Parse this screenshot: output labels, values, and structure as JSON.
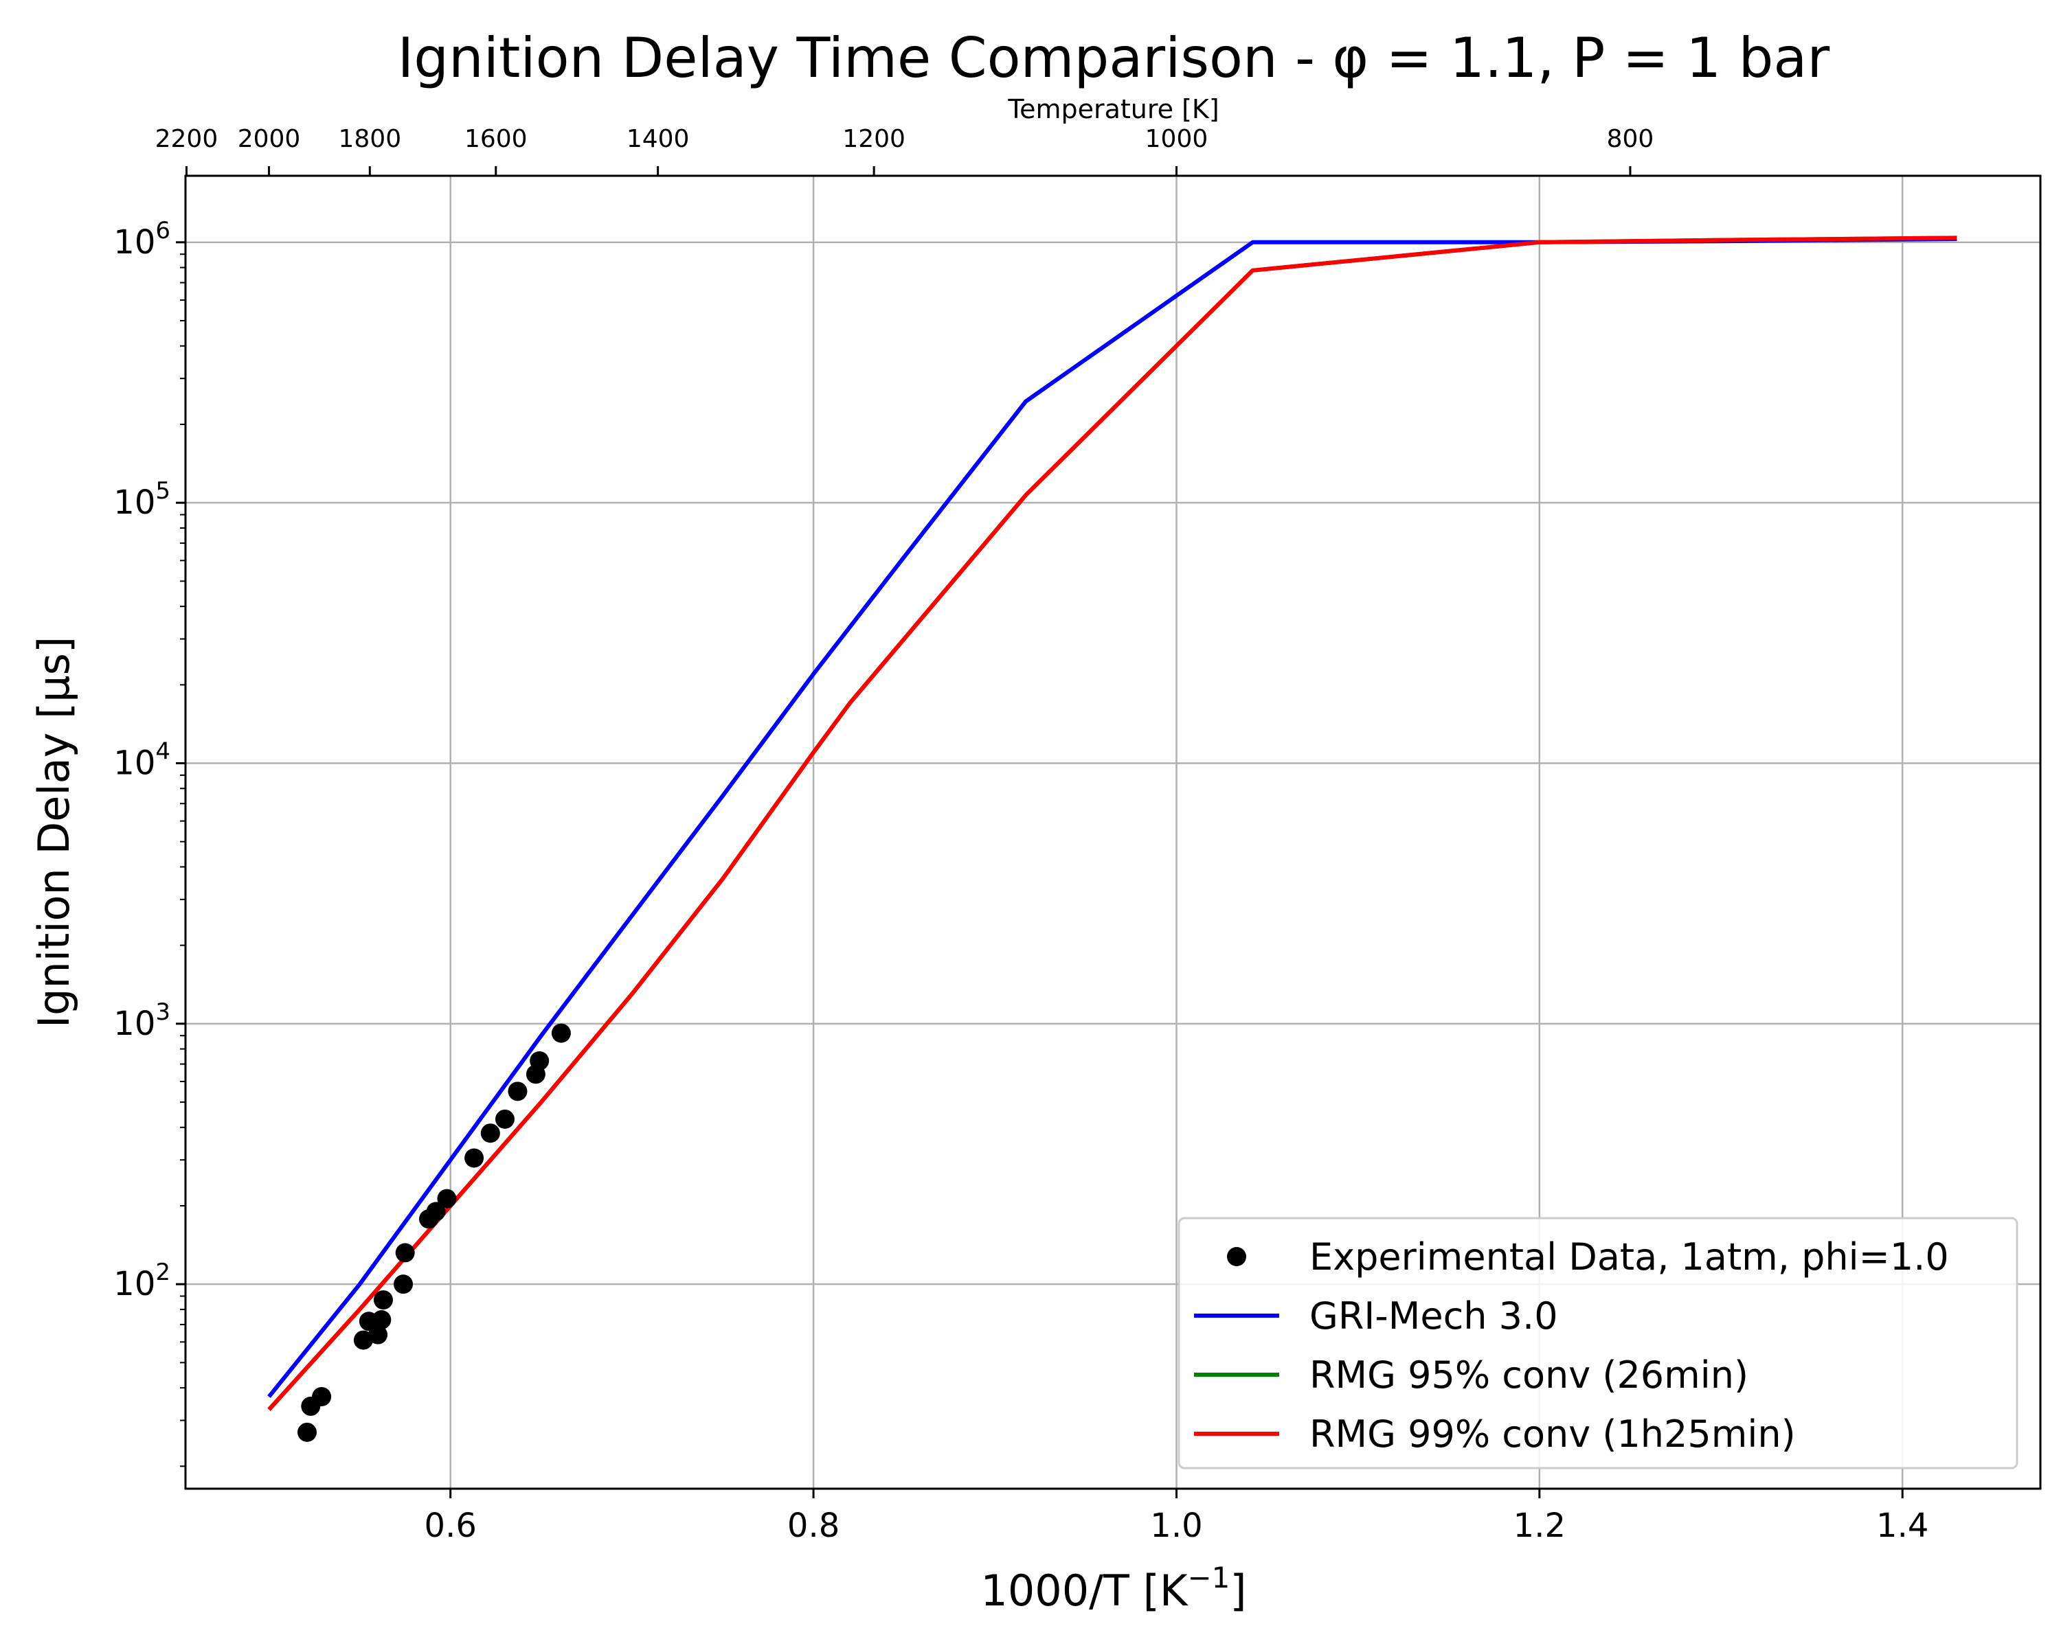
{
  "chart_data": {
    "type": "line",
    "title": "Ignition Delay Time Comparison - φ = 1.1, P = 1 bar",
    "xlabel": "1000/T [K",
    "xlabel_sup": "−1",
    "xlabel_end": "]",
    "ylabel": "Ignition Delay [μs]",
    "top_axis_label": "Temperature [K]",
    "xlim": [
      0.454,
      1.476
    ],
    "ylim": [
      16.4,
      1800000
    ],
    "yscale": "log",
    "grid": true,
    "legend_position": "lower-right",
    "x_ticks": [
      0.6,
      0.8,
      1.0,
      1.2,
      1.4
    ],
    "x_tick_labels": [
      "0.6",
      "0.8",
      "1.0",
      "1.2",
      "1.4"
    ],
    "y_ticks": [
      100,
      1000,
      10000,
      100000,
      1000000
    ],
    "y_tick_base": "10",
    "y_tick_exponents": [
      "2",
      "3",
      "4",
      "5",
      "6"
    ],
    "top_ticks_K": [
      2200,
      2000,
      1800,
      1600,
      1400,
      1200,
      1000,
      800
    ],
    "top_tick_labels": [
      "2200",
      "2000",
      "1800",
      "1600",
      "1400",
      "1200",
      "1000",
      "800"
    ],
    "series": [
      {
        "name": "Experimental Data, 1atm, phi=1.0",
        "kind": "scatter",
        "color": "#000000",
        "x": [
          0.521,
          0.523,
          0.529,
          0.552,
          0.555,
          0.56,
          0.562,
          0.563,
          0.574,
          0.575,
          0.588,
          0.592,
          0.598,
          0.613,
          0.622,
          0.63,
          0.637,
          0.647,
          0.649,
          0.661
        ],
        "y": [
          27,
          34,
          37,
          61,
          72,
          64,
          73,
          87,
          100,
          132,
          178,
          190,
          213,
          305,
          380,
          430,
          550,
          640,
          720,
          920
        ]
      },
      {
        "name": "GRI-Mech 3.0",
        "kind": "line",
        "color": "#0000ff",
        "x": [
          0.5,
          0.55,
          0.6,
          0.65,
          0.7,
          0.75,
          0.8,
          0.85,
          0.917,
          1.042,
          1.1,
          1.2,
          1.3,
          1.43
        ],
        "y": [
          37,
          100,
          300,
          900,
          2600,
          7500,
          22000,
          62000,
          245000,
          1000000,
          1000000,
          1000000,
          1010000,
          1030000
        ]
      },
      {
        "name": "RMG 95% conv (26min)",
        "kind": "line",
        "color": "#008000",
        "x": [
          0.5,
          0.55,
          0.6,
          0.65,
          0.7,
          0.75,
          0.8,
          0.82,
          0.917,
          1.042,
          1.2,
          1.3,
          1.43
        ],
        "y": [
          33,
          80,
          200,
          500,
          1300,
          3600,
          11000,
          17000,
          107000,
          780000,
          1000000,
          1020000,
          1040000
        ]
      },
      {
        "name": "RMG 99% conv (1h25min)",
        "kind": "line",
        "color": "#ff0000",
        "x": [
          0.5,
          0.55,
          0.6,
          0.65,
          0.7,
          0.75,
          0.8,
          0.82,
          0.917,
          1.042,
          1.2,
          1.3,
          1.43
        ],
        "y": [
          33,
          80,
          200,
          500,
          1300,
          3600,
          11000,
          17000,
          107000,
          780000,
          1000000,
          1020000,
          1040000
        ]
      }
    ]
  }
}
